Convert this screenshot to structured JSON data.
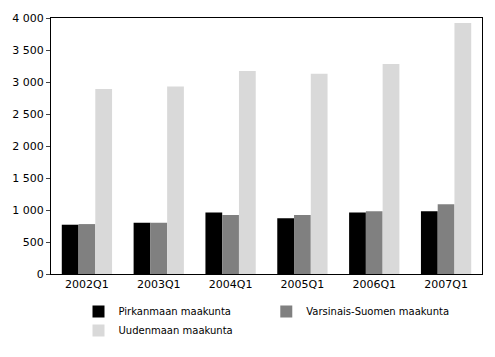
{
  "chart_data": {
    "type": "bar",
    "categories": [
      "2002Q1",
      "2003Q1",
      "2004Q1",
      "2005Q1",
      "2006Q1",
      "2007Q1"
    ],
    "series": [
      {
        "name": "Pirkanmaan maakunta",
        "color": "#000000",
        "values": [
          770,
          800,
          960,
          870,
          960,
          980
        ]
      },
      {
        "name": "Varsinais-Suomen maakunta",
        "color": "#808080",
        "values": [
          780,
          800,
          920,
          920,
          980,
          1090
        ]
      },
      {
        "name": "Uudenmaan maakunta",
        "color": "#d9d9d9",
        "values": [
          2890,
          2930,
          3170,
          3130,
          3280,
          3920
        ]
      }
    ],
    "ylim": [
      0,
      4000
    ],
    "yticks": [
      0,
      500,
      {
        "value": 1000,
        "label": "1 000"
      },
      {
        "value": 1500,
        "label": "1 500"
      },
      {
        "value": 2000,
        "label": "2 000"
      },
      {
        "value": 2500,
        "label": "2 500"
      },
      {
        "value": 3000,
        "label": "3 000"
      },
      {
        "value": 3500,
        "label": "3 500"
      },
      {
        "value": 4000,
        "label": "4 000"
      }
    ],
    "grid": false,
    "legend": "bottom"
  }
}
